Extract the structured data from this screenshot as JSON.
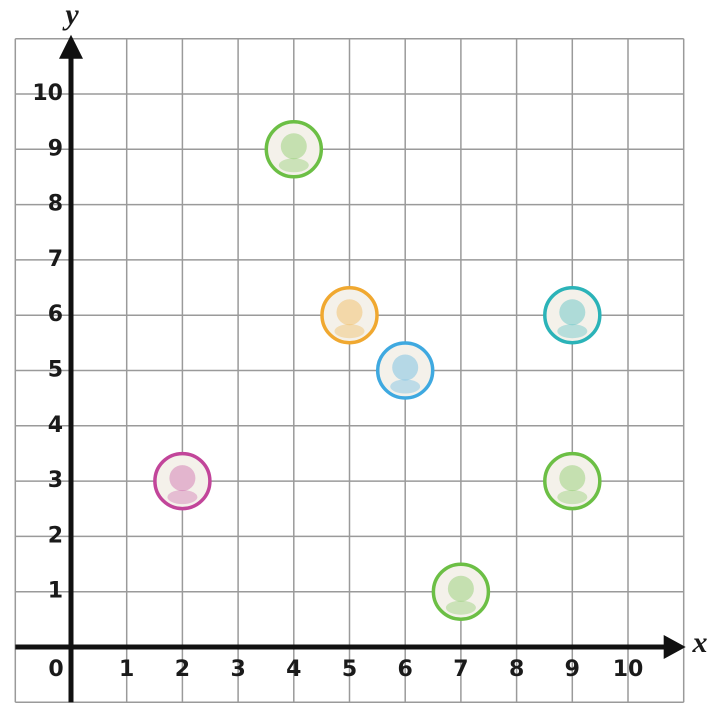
{
  "chart_data": {
    "type": "scatter",
    "x_label": "x",
    "y_label": "y",
    "origin_label": "0",
    "xlim": [
      -1,
      11
    ],
    "ylim": [
      -1,
      11
    ],
    "xticks": [
      1,
      2,
      3,
      4,
      5,
      6,
      7,
      8,
      9,
      10
    ],
    "yticks": [
      1,
      2,
      3,
      4,
      5,
      6,
      7,
      8,
      9,
      10
    ],
    "grid": true,
    "x": [
      2,
      4,
      5,
      6,
      9,
      9,
      7
    ],
    "values": [
      3,
      9,
      6,
      5,
      6,
      3,
      1
    ],
    "colors": [
      "#c2459a",
      "#6cbf45",
      "#f0a830",
      "#3fa9e0",
      "#2bb3b8",
      "#6cbf45",
      "#6cbf45"
    ]
  }
}
